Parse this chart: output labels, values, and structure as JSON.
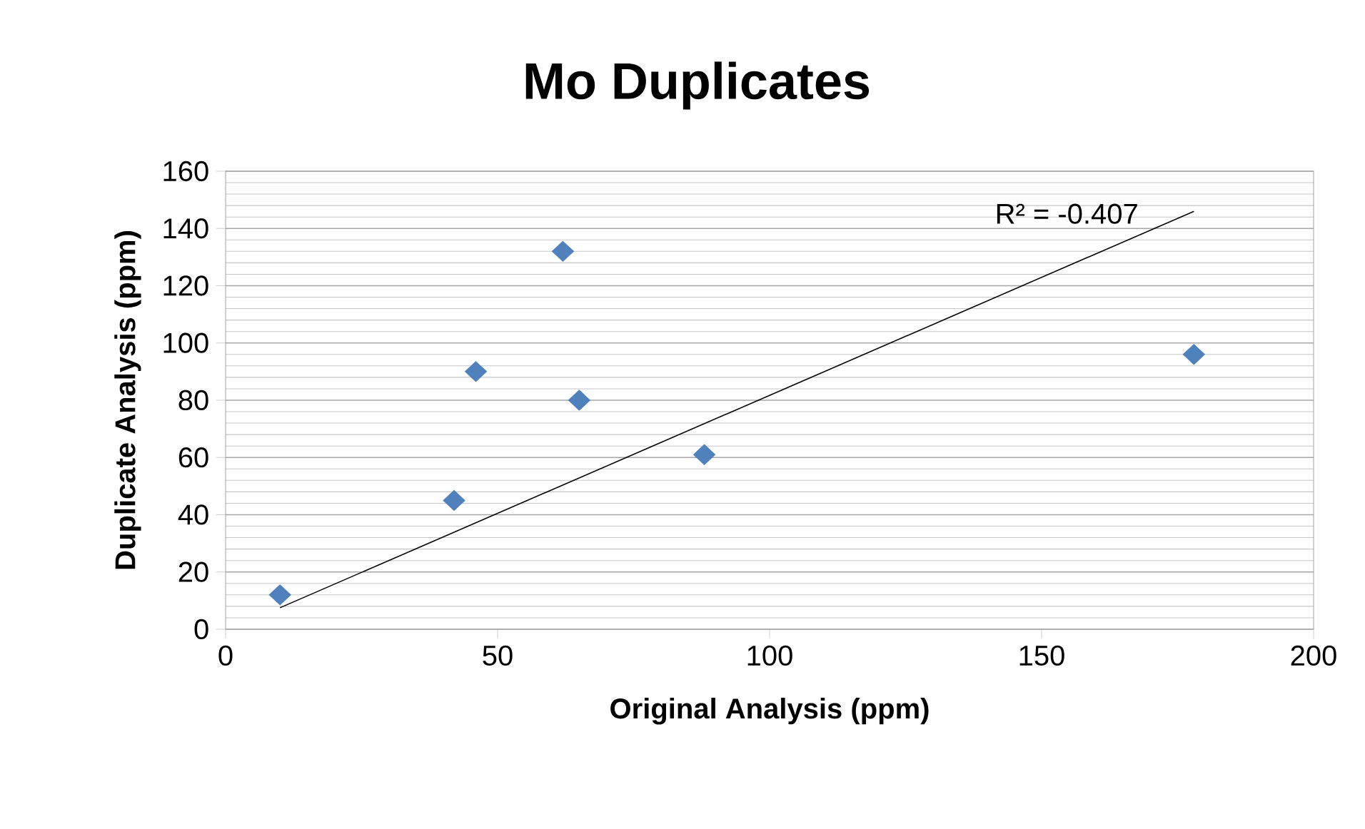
{
  "chart_data": {
    "type": "scatter",
    "title": "Mo Duplicates",
    "xlabel": "Original Analysis (ppm)",
    "ylabel": "Duplicate Analysis (ppm)",
    "xlim": [
      0,
      200
    ],
    "xticks": [
      0,
      50,
      100,
      150,
      200
    ],
    "ylim": [
      0,
      160
    ],
    "yticks": [
      0,
      20,
      40,
      60,
      80,
      100,
      120,
      140,
      160
    ],
    "grid": "y",
    "marker": "diamond",
    "series": [
      {
        "color": "#4f81bd",
        "x": [
          10,
          42,
          46,
          62,
          65,
          88,
          178
        ],
        "values": [
          12,
          45,
          90,
          132,
          80,
          61,
          96
        ]
      },
      {
        "type": "line",
        "marker": "none",
        "color": "#000000",
        "x": [
          10,
          178
        ],
        "values": [
          7.5,
          146
        ]
      }
    ],
    "annotations": [
      "R² = -0.407"
    ]
  }
}
